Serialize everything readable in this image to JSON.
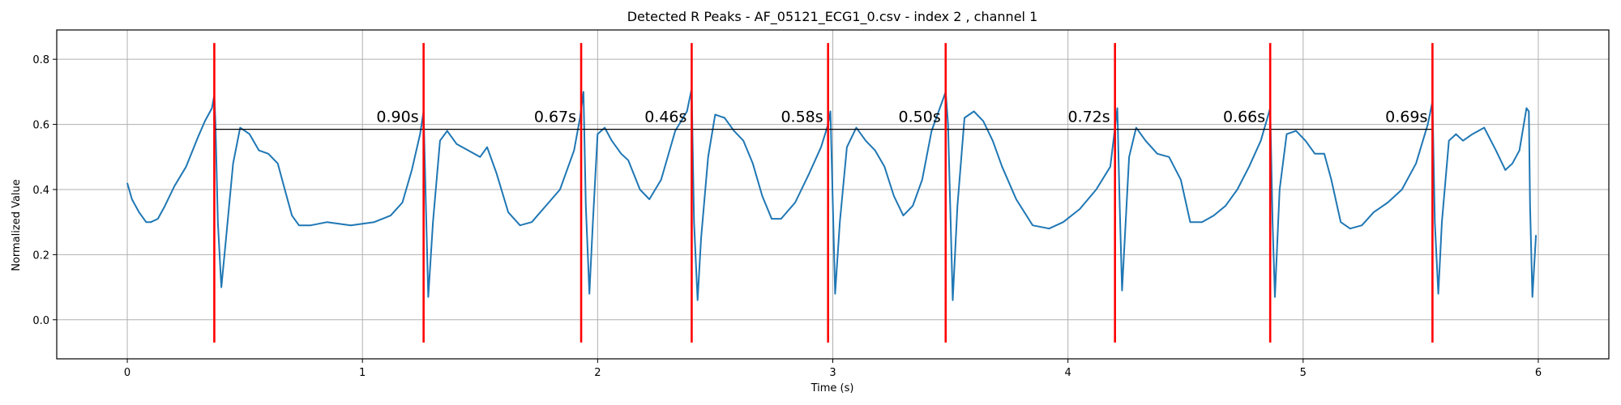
{
  "chart_data": {
    "type": "line",
    "title": "Detected R Peaks - AF_05121_ECG1_0.csv - index 2 , channel 1",
    "xlabel": "Time (s)",
    "ylabel": "Normalized Value",
    "xlim": [
      -0.3,
      6.3
    ],
    "ylim": [
      -0.12,
      0.89
    ],
    "xticks": [
      0,
      1,
      2,
      3,
      4,
      5,
      6
    ],
    "xtick_labels": [
      "0",
      "1",
      "2",
      "3",
      "4",
      "5",
      "6"
    ],
    "yticks": [
      0.0,
      0.2,
      0.4,
      0.6,
      0.8
    ],
    "ytick_labels": [
      "0.0",
      "0.2",
      "0.4",
      "0.6",
      "0.8"
    ],
    "grid": true,
    "colors": {
      "signal": "#1f77b4",
      "peaks": "#ff0000",
      "intervals": "#000000",
      "grid": "#b0b0b0"
    },
    "series": [
      {
        "x": [
          0.0,
          0.02,
          0.05,
          0.08,
          0.1,
          0.13,
          0.16,
          0.2,
          0.25,
          0.3,
          0.33,
          0.36,
          0.37,
          0.375,
          0.385,
          0.4,
          0.42,
          0.45,
          0.48,
          0.52,
          0.56,
          0.6,
          0.64,
          0.67,
          0.7,
          0.73,
          0.78,
          0.85,
          0.95,
          1.05,
          1.12,
          1.17,
          1.21,
          1.245,
          1.26,
          1.27,
          1.28,
          1.3,
          1.33,
          1.36,
          1.4,
          1.45,
          1.5,
          1.53,
          1.57,
          1.62,
          1.67,
          1.72,
          1.78,
          1.84,
          1.9,
          1.925,
          1.94,
          1.95,
          1.965,
          1.98,
          2.0,
          2.03,
          2.06,
          2.1,
          2.13,
          2.18,
          2.22,
          2.27,
          2.33,
          2.38,
          2.4,
          2.41,
          2.425,
          2.44,
          2.47,
          2.5,
          2.54,
          2.58,
          2.62,
          2.66,
          2.7,
          2.74,
          2.78,
          2.84,
          2.9,
          2.95,
          2.98,
          2.99,
          3.01,
          3.03,
          3.06,
          3.1,
          3.14,
          3.18,
          3.22,
          3.26,
          3.3,
          3.34,
          3.38,
          3.42,
          3.46,
          3.48,
          3.49,
          3.51,
          3.53,
          3.56,
          3.6,
          3.64,
          3.68,
          3.72,
          3.78,
          3.85,
          3.92,
          3.98,
          4.05,
          4.12,
          4.18,
          4.21,
          4.22,
          4.23,
          4.26,
          4.29,
          4.33,
          4.38,
          4.43,
          4.48,
          4.52,
          4.57,
          4.62,
          4.67,
          4.72,
          4.77,
          4.82,
          4.86,
          4.87,
          4.88,
          4.9,
          4.93,
          4.97,
          5.01,
          5.05,
          5.09,
          5.12,
          5.16,
          5.2,
          5.25,
          5.3,
          5.36,
          5.42,
          5.48,
          5.53,
          5.55,
          5.56,
          5.575,
          5.59,
          5.62,
          5.65,
          5.68,
          5.72,
          5.77,
          5.82,
          5.86,
          5.89,
          5.92,
          5.95,
          5.96,
          5.965,
          5.975,
          5.99
        ],
        "y": [
          0.42,
          0.37,
          0.33,
          0.3,
          0.3,
          0.31,
          0.35,
          0.41,
          0.47,
          0.56,
          0.61,
          0.65,
          0.69,
          0.6,
          0.3,
          0.1,
          0.25,
          0.48,
          0.59,
          0.57,
          0.52,
          0.51,
          0.48,
          0.4,
          0.32,
          0.29,
          0.29,
          0.3,
          0.29,
          0.3,
          0.32,
          0.36,
          0.46,
          0.57,
          0.64,
          0.35,
          0.07,
          0.3,
          0.55,
          0.58,
          0.54,
          0.52,
          0.5,
          0.53,
          0.45,
          0.33,
          0.29,
          0.3,
          0.35,
          0.4,
          0.52,
          0.62,
          0.7,
          0.35,
          0.08,
          0.3,
          0.57,
          0.59,
          0.55,
          0.51,
          0.49,
          0.4,
          0.37,
          0.43,
          0.58,
          0.64,
          0.71,
          0.3,
          0.06,
          0.25,
          0.5,
          0.63,
          0.62,
          0.58,
          0.55,
          0.48,
          0.38,
          0.31,
          0.31,
          0.36,
          0.45,
          0.53,
          0.6,
          0.64,
          0.08,
          0.3,
          0.53,
          0.59,
          0.55,
          0.52,
          0.47,
          0.38,
          0.32,
          0.35,
          0.43,
          0.58,
          0.66,
          0.7,
          0.6,
          0.06,
          0.35,
          0.62,
          0.64,
          0.61,
          0.55,
          0.47,
          0.37,
          0.29,
          0.28,
          0.3,
          0.34,
          0.4,
          0.47,
          0.65,
          0.35,
          0.09,
          0.5,
          0.59,
          0.55,
          0.51,
          0.5,
          0.43,
          0.3,
          0.3,
          0.32,
          0.35,
          0.4,
          0.47,
          0.55,
          0.65,
          0.3,
          0.07,
          0.4,
          0.57,
          0.58,
          0.55,
          0.51,
          0.51,
          0.43,
          0.3,
          0.28,
          0.29,
          0.33,
          0.36,
          0.4,
          0.48,
          0.6,
          0.67,
          0.3,
          0.08,
          0.3,
          0.55,
          0.57,
          0.55,
          0.57,
          0.59,
          0.52,
          0.46,
          0.48,
          0.52,
          0.65,
          0.64,
          0.35,
          0.07,
          0.26
        ]
      }
    ],
    "r_peaks": {
      "times": [
        0.37,
        1.26,
        1.93,
        2.4,
        2.98,
        3.48,
        4.2,
        4.86,
        5.55
      ],
      "y_bottom": -0.07,
      "y_top": 0.85
    },
    "interval_level": 0.585,
    "intervals": [
      {
        "from": 0.37,
        "to": 1.26,
        "label": "0.90s"
      },
      {
        "from": 1.26,
        "to": 1.93,
        "label": "0.67s"
      },
      {
        "from": 1.93,
        "to": 2.4,
        "label": "0.46s"
      },
      {
        "from": 2.4,
        "to": 2.98,
        "label": "0.58s"
      },
      {
        "from": 2.98,
        "to": 3.48,
        "label": "0.50s"
      },
      {
        "from": 3.48,
        "to": 4.2,
        "label": "0.72s"
      },
      {
        "from": 4.2,
        "to": 4.86,
        "label": "0.66s"
      },
      {
        "from": 4.86,
        "to": 5.55,
        "label": "0.69s"
      }
    ]
  }
}
